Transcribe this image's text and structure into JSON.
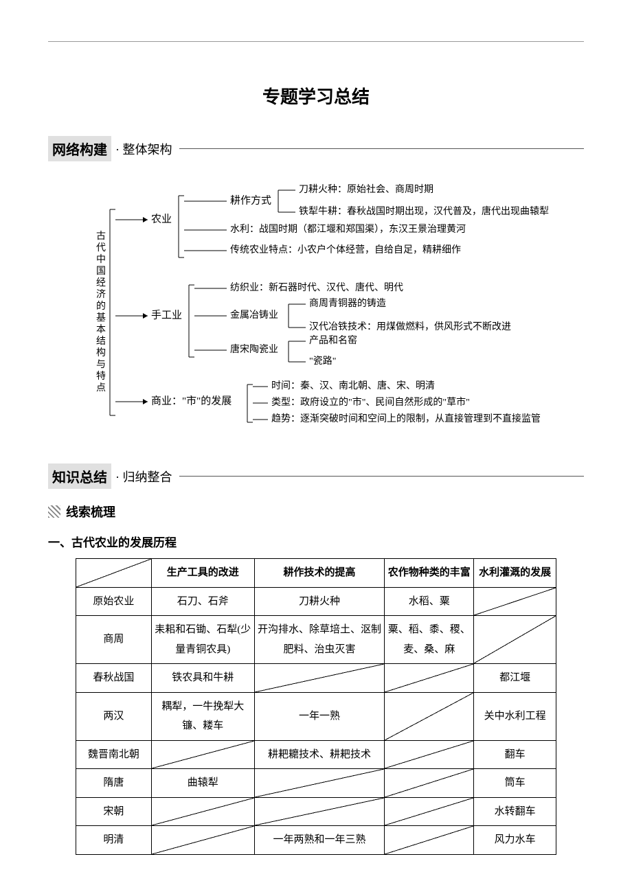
{
  "page": {
    "main_title": "专题学习总结"
  },
  "section1": {
    "box": "网络构建",
    "sub": "· 整体架构"
  },
  "diagram": {
    "root": "古代中国经济的基本结构与特点",
    "font_family": "SimSun",
    "stroke_color": "#000000",
    "stroke_width": 1,
    "font_size": 15,
    "nodes": {
      "n_agri": "农业",
      "n_hand": "手工业",
      "n_comm_a": "商业：",
      "n_comm_b": "\"市\"的发展",
      "n_gzfs": "耕作方式",
      "n_dghz": "刀耕火种：原始社会、商周时期",
      "n_tlng": "铁犁牛耕：春秋战国时期出现，汉代普及，唐代出现曲辕犁",
      "n_sl": "水利：战国时期（都江堰和郑国渠），东汉王景治理黄河",
      "n_ctny": "传统农业特点：小农户个体经营，自给自足，精耕细作",
      "n_fzy": "纺织业：新石器时代、汉代、唐代、明代",
      "n_jsyzy": "金属冶铸业",
      "n_szqt": "商周青铜器的铸造",
      "n_hdyt": "汉代冶铁技术：用煤做燃料，供风形式不断改进",
      "n_tsty": "唐宋陶瓷业",
      "n_cpmy": "产品和名窑",
      "n_cl": "\"瓷路\"",
      "n_time": "时间：秦、汉、南北朝、唐、宋、明清",
      "n_type": "类型：政府设立的\"市\"、民间自然形成的\"草市\"",
      "n_trend": "趋势：逐渐突破时间和空间上的限制，从直接管理到不直接监管"
    }
  },
  "section2": {
    "box": "知识总结",
    "sub": "· 归纳整合"
  },
  "subhead": {
    "text": "线索梳理"
  },
  "part1": {
    "heading": "一、古代农业的发展历程"
  },
  "table": {
    "border_color": "#000000",
    "font_size": 15,
    "columns": [
      "",
      "生产工具的改进",
      "耕作技术的提高",
      "农作物种类的丰富",
      "水利灌溉的发展"
    ],
    "rows": [
      {
        "era": "原始农业",
        "tool": "石刀、石斧",
        "tech": "刀耕火种",
        "crop": "水稻、粟",
        "water": "",
        "blank": [
          "water"
        ]
      },
      {
        "era": "商周",
        "tool": "耒耜和石锄、石犁(少量青铜农具)",
        "tech": "开沟排水、除草培土、沤制肥料、治虫灭害",
        "crop": "粟、稻、黍、稷、麦、桑、麻",
        "water": "",
        "blank": [
          "water"
        ]
      },
      {
        "era": "春秋战国",
        "tool": "铁农具和牛耕",
        "tech": "",
        "crop": "",
        "water": "都江堰",
        "blank": [
          "tech",
          "crop"
        ]
      },
      {
        "era": "两汉",
        "tool": "耦犁，一牛挽犁大镰、耧车",
        "tech": "一年一熟",
        "crop": "",
        "water": "关中水利工程",
        "blank": [
          "crop"
        ]
      },
      {
        "era": "魏晋南北朝",
        "tool": "",
        "tech": "耕耙耱技术、耕耙技术",
        "crop": "",
        "water": "翻车",
        "blank": [
          "tool",
          "crop"
        ]
      },
      {
        "era": "隋唐",
        "tool": "曲辕犁",
        "tech": "",
        "crop": "",
        "water": "筒车",
        "blank": [
          "tech",
          "crop"
        ]
      },
      {
        "era": "宋朝",
        "tool": "",
        "tech": "",
        "crop": "",
        "water": "水转翻车",
        "blank": [
          "tool",
          "tech",
          "crop"
        ]
      },
      {
        "era": "明清",
        "tool": "",
        "tech": "一年两熟和一年三熟",
        "crop": "",
        "water": "风力水车",
        "blank": [
          "tool",
          "crop"
        ]
      }
    ]
  }
}
